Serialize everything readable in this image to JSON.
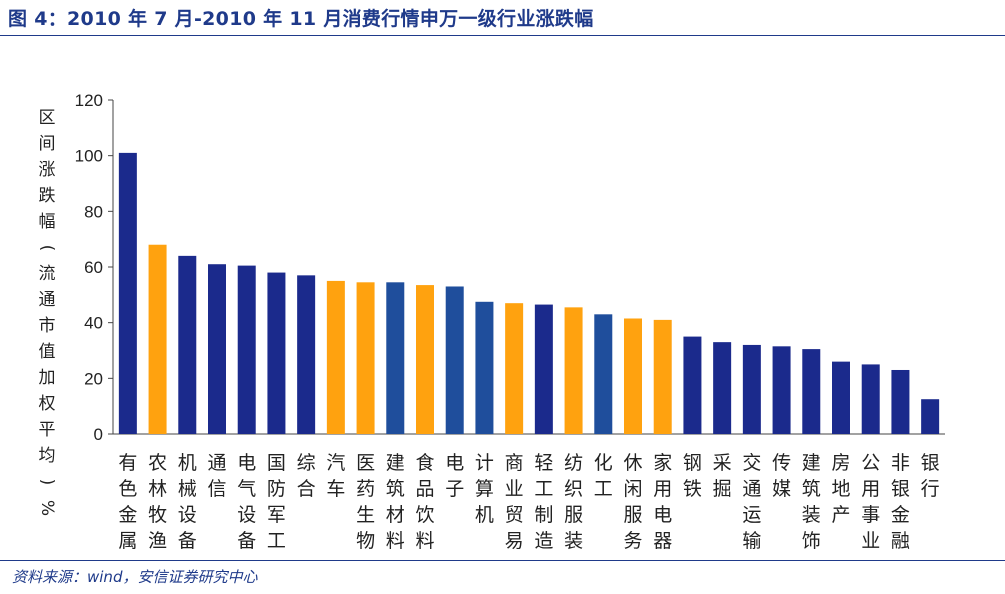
{
  "header": {
    "title": "图 4：2010 年 7 月-2010 年 11 月消费行情申万一级行业涨跌幅"
  },
  "footer": {
    "source": "资料来源：wind，安信证券研究中心"
  },
  "colors": {
    "navy": "#1b2a8c",
    "blue": "#1f4e9c",
    "orange": "#ffa20f",
    "text": "#1f3a8a"
  },
  "chart_data": {
    "type": "bar",
    "title": "",
    "ylabel": "区间涨跌幅(流通市值加权平均)%",
    "xlabel": "",
    "ylim": [
      0,
      120
    ],
    "yticks": [
      0,
      20,
      40,
      60,
      80,
      100,
      120
    ],
    "grid": false,
    "categories": [
      "有色金属",
      "农林牧渔",
      "机械设备",
      "通信",
      "电气设备",
      "国防军工",
      "综合",
      "汽车",
      "医药生物",
      "建筑材料",
      "食品饮料",
      "电子",
      "计算机",
      "商业贸易",
      "轻工制造",
      "纺织服装",
      "化工",
      "休闲服务",
      "家用电器",
      "钢铁",
      "采掘",
      "交通运输",
      "传媒",
      "建筑装饰",
      "房地产",
      "公用事业",
      "非银金融",
      "银行"
    ],
    "values": [
      101,
      68,
      64,
      61,
      60.5,
      58,
      57,
      55,
      54.5,
      54.5,
      53.5,
      53,
      47.5,
      47,
      46.5,
      45.5,
      43,
      41.5,
      41,
      35,
      33,
      32,
      31.5,
      30.5,
      26,
      25,
      23,
      12.5
    ],
    "bar_colors": [
      "navy",
      "orange",
      "navy",
      "navy",
      "navy",
      "navy",
      "navy",
      "orange",
      "orange",
      "blue",
      "orange",
      "blue",
      "blue",
      "orange",
      "navy",
      "orange",
      "blue",
      "orange",
      "orange",
      "navy",
      "navy",
      "navy",
      "navy",
      "navy",
      "navy",
      "navy",
      "navy",
      "navy"
    ]
  }
}
